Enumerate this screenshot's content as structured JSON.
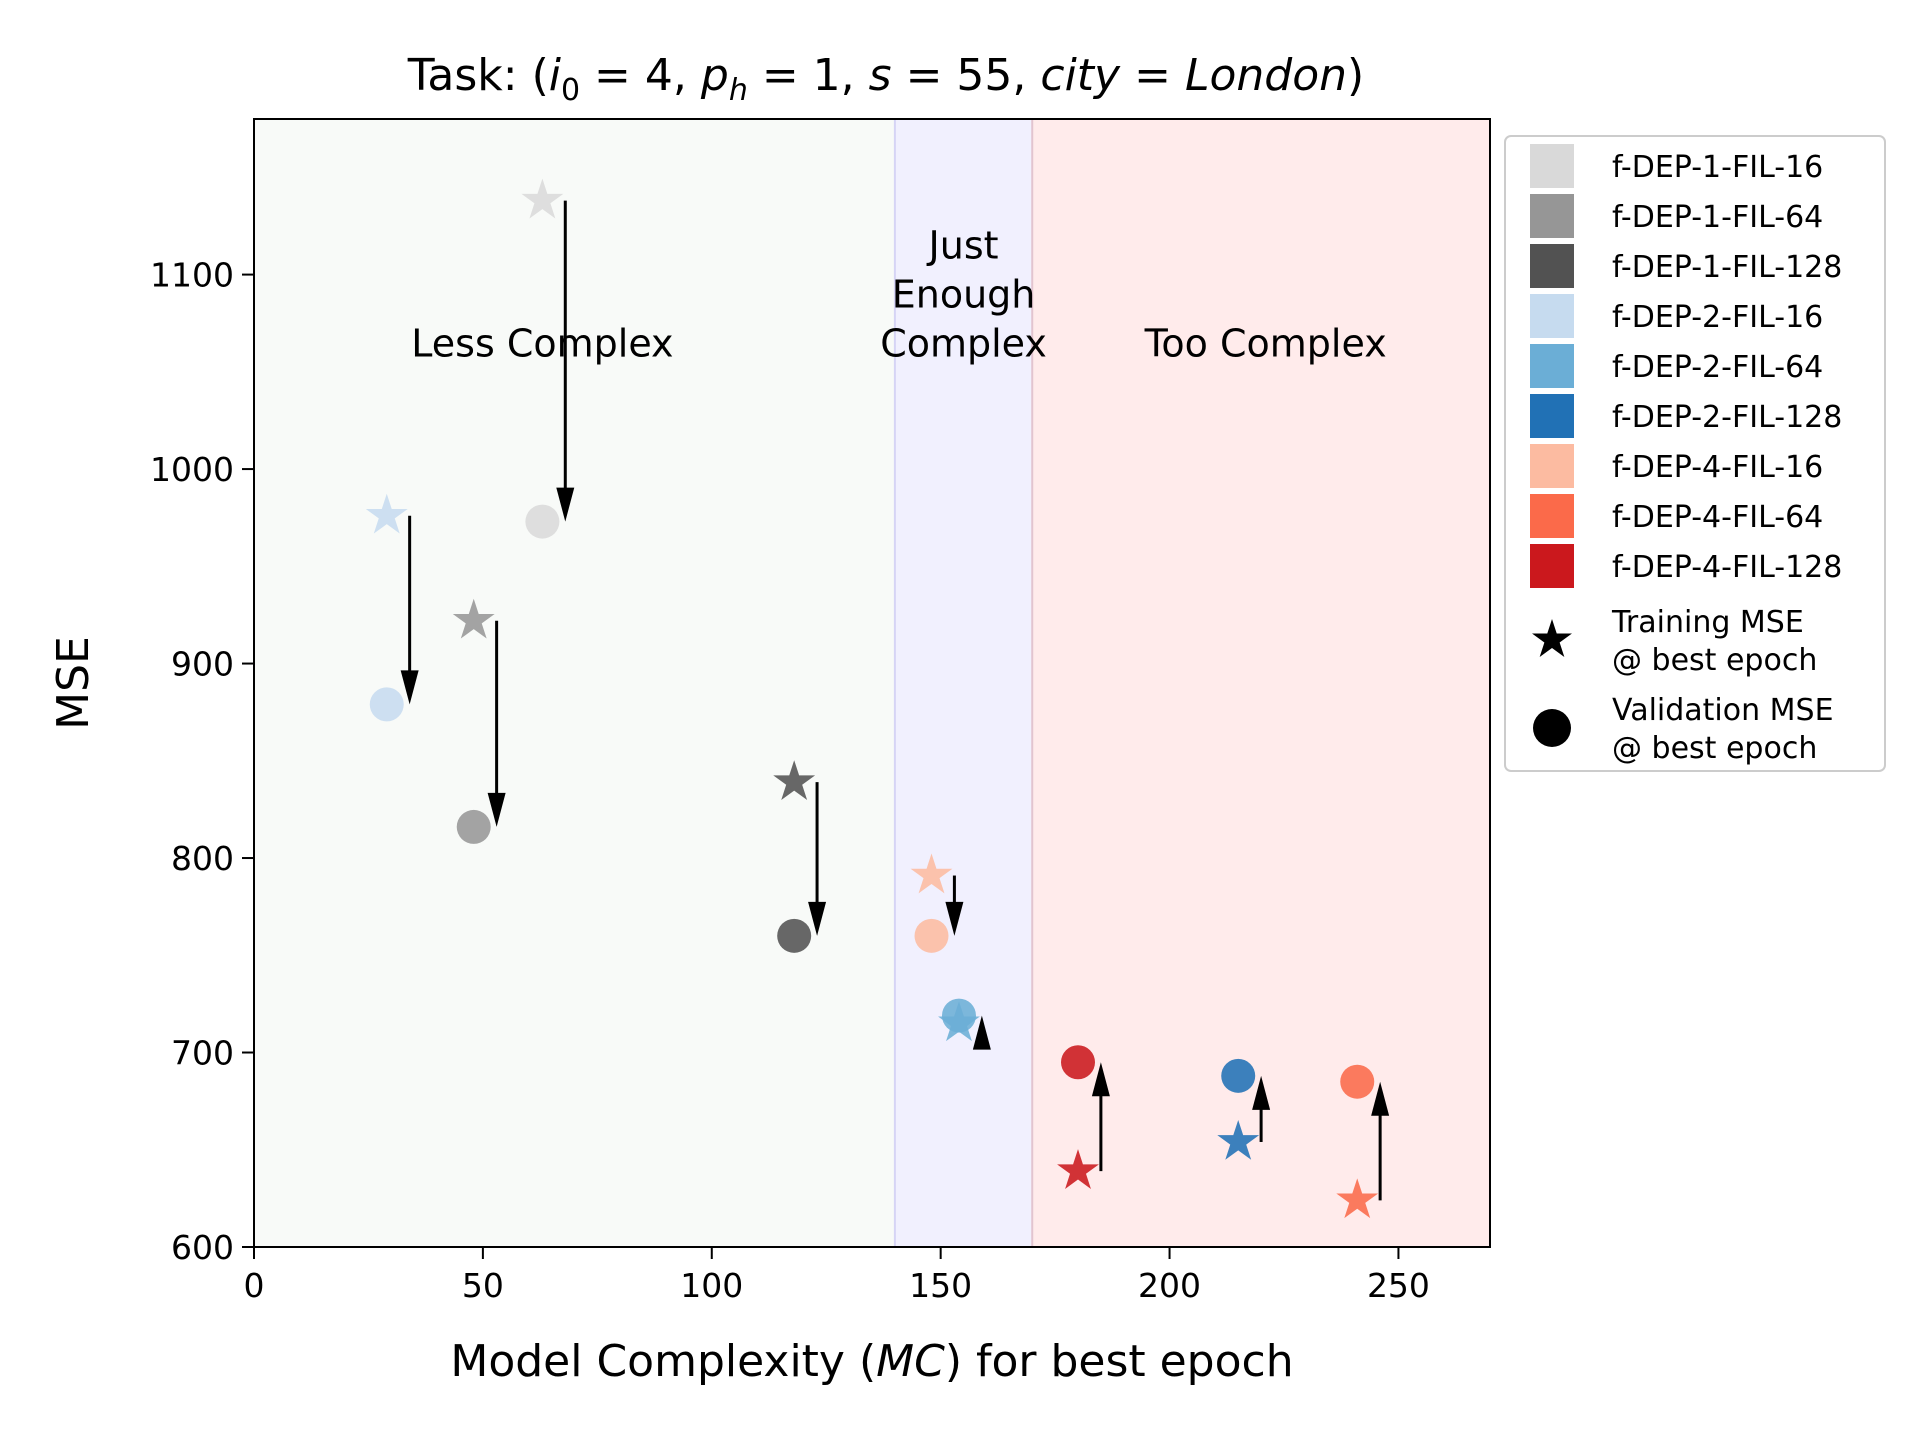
{
  "chart_data": {
    "type": "scatter",
    "title": {
      "prefix": "Task: (",
      "parts": [
        {
          "sym": "i",
          "sub": "0",
          "val": " = 4, "
        },
        {
          "sym": "p",
          "sub": "h",
          "val": " = 1, "
        },
        {
          "sym": "s",
          "sub": "",
          "val": " = 55, "
        },
        {
          "sym": "city",
          "sub": "",
          "val": " = "
        },
        {
          "sym": "London",
          "sub": "",
          "val": ""
        }
      ],
      "suffix": ")"
    },
    "xlabel": {
      "pre": "Model Complexity (",
      "math": "MC",
      "post": ") for best epoch"
    },
    "ylabel": "MSE",
    "xlim": [
      0,
      270
    ],
    "ylim": [
      600,
      1180
    ],
    "xticks": [
      0,
      50,
      100,
      150,
      200,
      250
    ],
    "yticks": [
      600,
      700,
      800,
      900,
      1000,
      1100
    ],
    "regions": [
      {
        "from": 0,
        "to": 140,
        "color": "#f8faf8",
        "label": [
          "Less Complex"
        ],
        "label_x": 63,
        "label_y": 1064
      },
      {
        "from": 140,
        "to": 170,
        "color": "#f1f0fe",
        "label": [
          "Just",
          "Enough",
          "Complex"
        ],
        "label_x": 155,
        "label_y": 1064
      },
      {
        "from": 170,
        "to": 270,
        "color": "#ffebeb",
        "label": [
          "Too Complex"
        ],
        "label_x": 221,
        "label_y": 1064
      }
    ],
    "boundaries": [
      {
        "x": 140,
        "color": "#d6d4f5"
      },
      {
        "x": 170,
        "color": "#e2c4cf"
      }
    ],
    "series": [
      {
        "name": "f-DEP-1-FIL-16",
        "color": "#d9d9d9",
        "x": 63,
        "train": 1138,
        "val": 973
      },
      {
        "name": "f-DEP-1-FIL-64",
        "color": "#969696",
        "x": 48,
        "train": 922,
        "val": 816
      },
      {
        "name": "f-DEP-1-FIL-128",
        "color": "#525252",
        "x": 118,
        "train": 839,
        "val": 760
      },
      {
        "name": "f-DEP-2-FIL-16",
        "color": "#c6dbef",
        "x": 29,
        "train": 976,
        "val": 879
      },
      {
        "name": "f-DEP-2-FIL-64",
        "color": "#6baed6",
        "x": 154,
        "train": 715,
        "val": 719
      },
      {
        "name": "f-DEP-2-FIL-128",
        "color": "#2171b5",
        "x": 215,
        "train": 654,
        "val": 688
      },
      {
        "name": "f-DEP-4-FIL-16",
        "color": "#fcbba1",
        "x": 148,
        "train": 791,
        "val": 760
      },
      {
        "name": "f-DEP-4-FIL-64",
        "color": "#fb6a4a",
        "x": 241,
        "train": 624,
        "val": 685
      },
      {
        "name": "f-DEP-4-FIL-128",
        "color": "#cb181d",
        "x": 180,
        "train": 639,
        "val": 695
      }
    ],
    "arrow_offset": 5,
    "legend": {
      "placement": "outside-right",
      "markers": [
        {
          "symbol": "star",
          "lines": [
            "Training MSE",
            "@ best epoch"
          ]
        },
        {
          "symbol": "circle",
          "lines": [
            "Validation MSE",
            "@ best epoch"
          ]
        }
      ]
    },
    "grid": false
  }
}
